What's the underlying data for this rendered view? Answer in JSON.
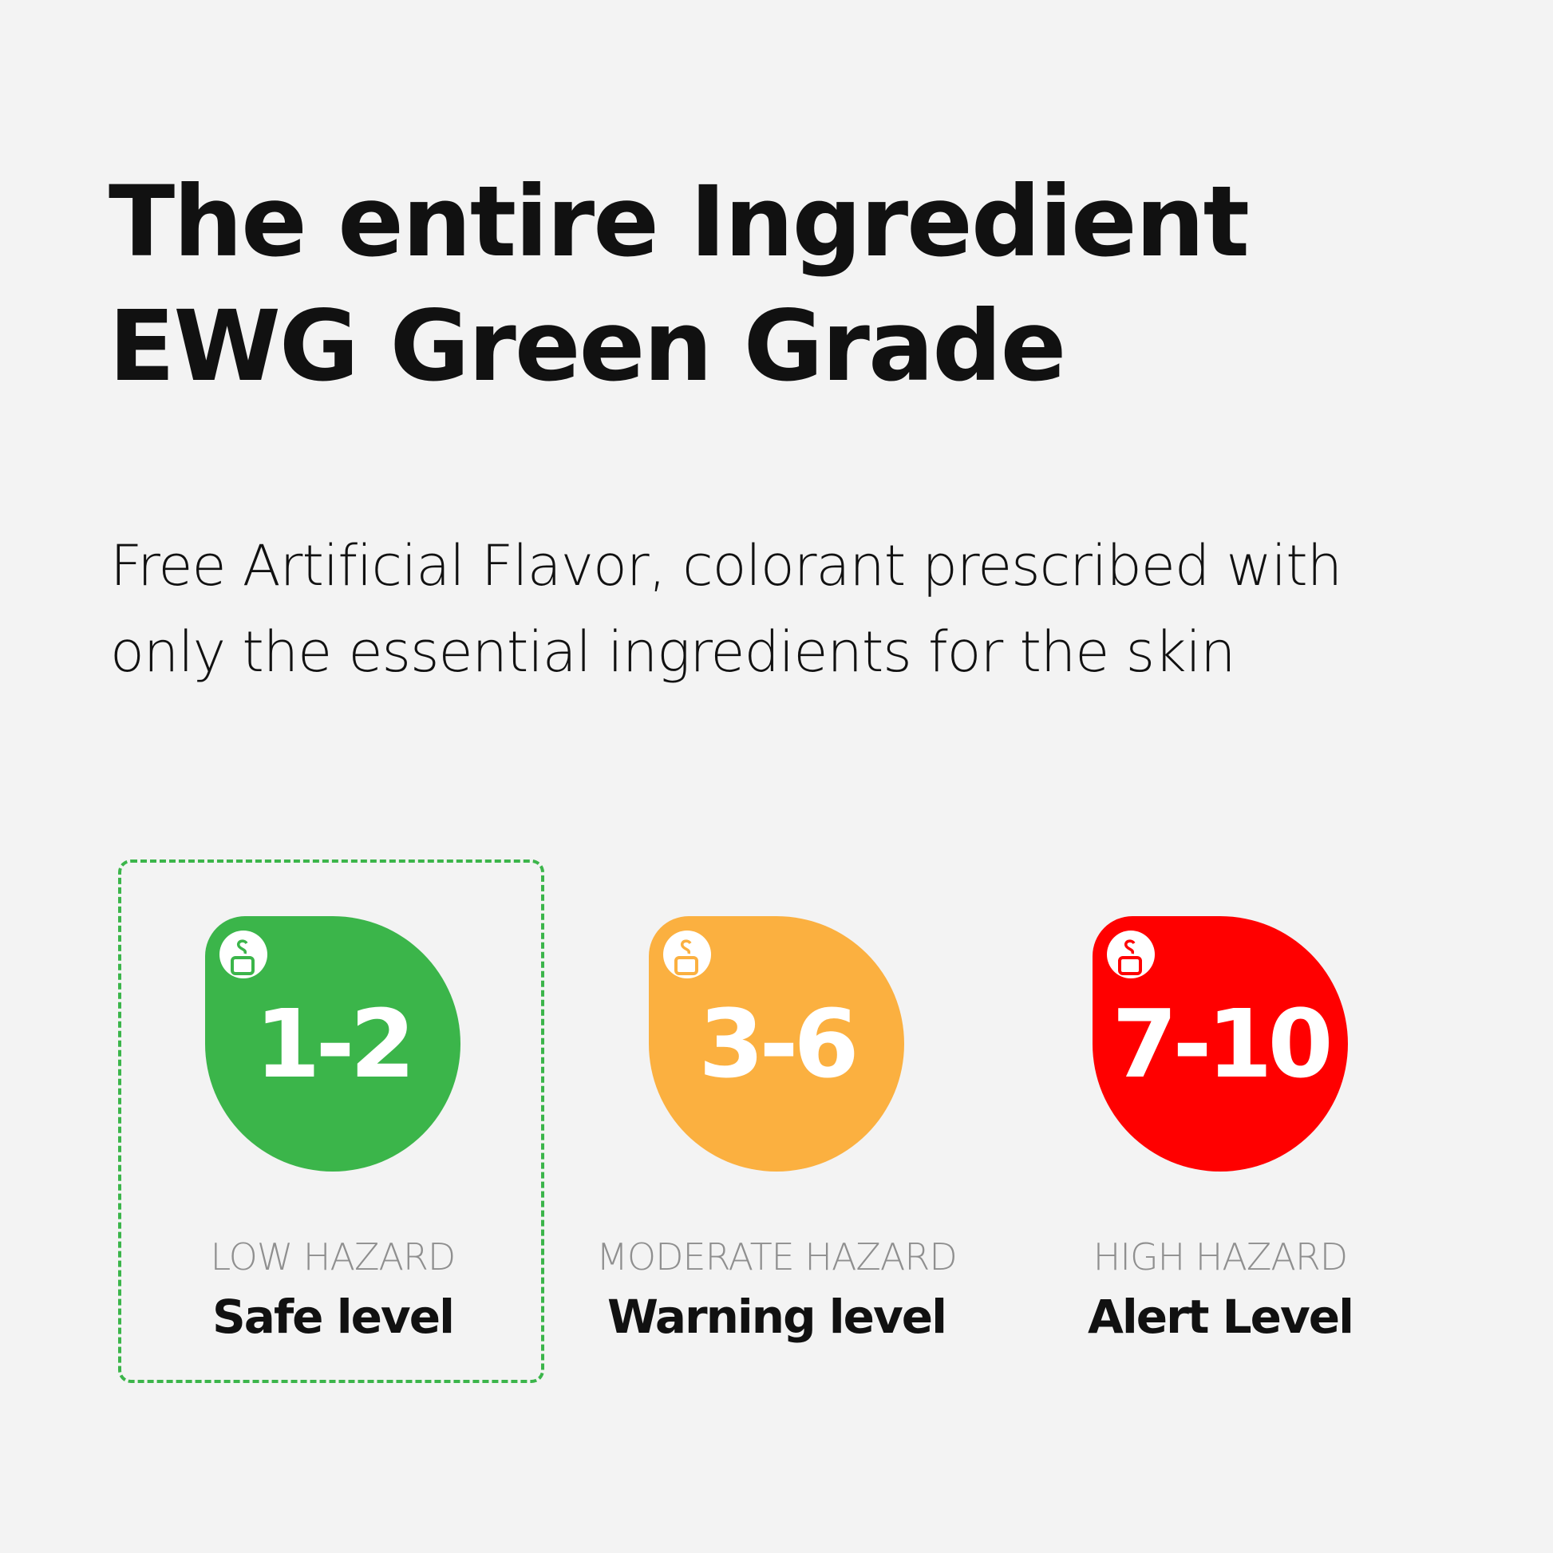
{
  "title": {
    "line1": "The entire Ingredient",
    "line2": "EWG Green Grade"
  },
  "subtitle": {
    "line1": "Free Artificial Flavor, colorant prescribed with",
    "line2": "only the essential ingredients for the skin"
  },
  "grades": [
    {
      "range": "1-2",
      "hazard": "LOW HAZARD",
      "level": "Safe level",
      "color": "#3bb54a",
      "icon": "ewg-skin-icon",
      "selected": true
    },
    {
      "range": "3-6",
      "hazard": "MODERATE HAZARD",
      "level": "Warning level",
      "color": "#fbb040",
      "icon": "ewg-skin-icon",
      "selected": false
    },
    {
      "range": "7-10",
      "hazard": "HIGH HAZARD",
      "level": "Alert Level",
      "color": "#ff0000",
      "icon": "ewg-skin-icon",
      "selected": false
    }
  ]
}
